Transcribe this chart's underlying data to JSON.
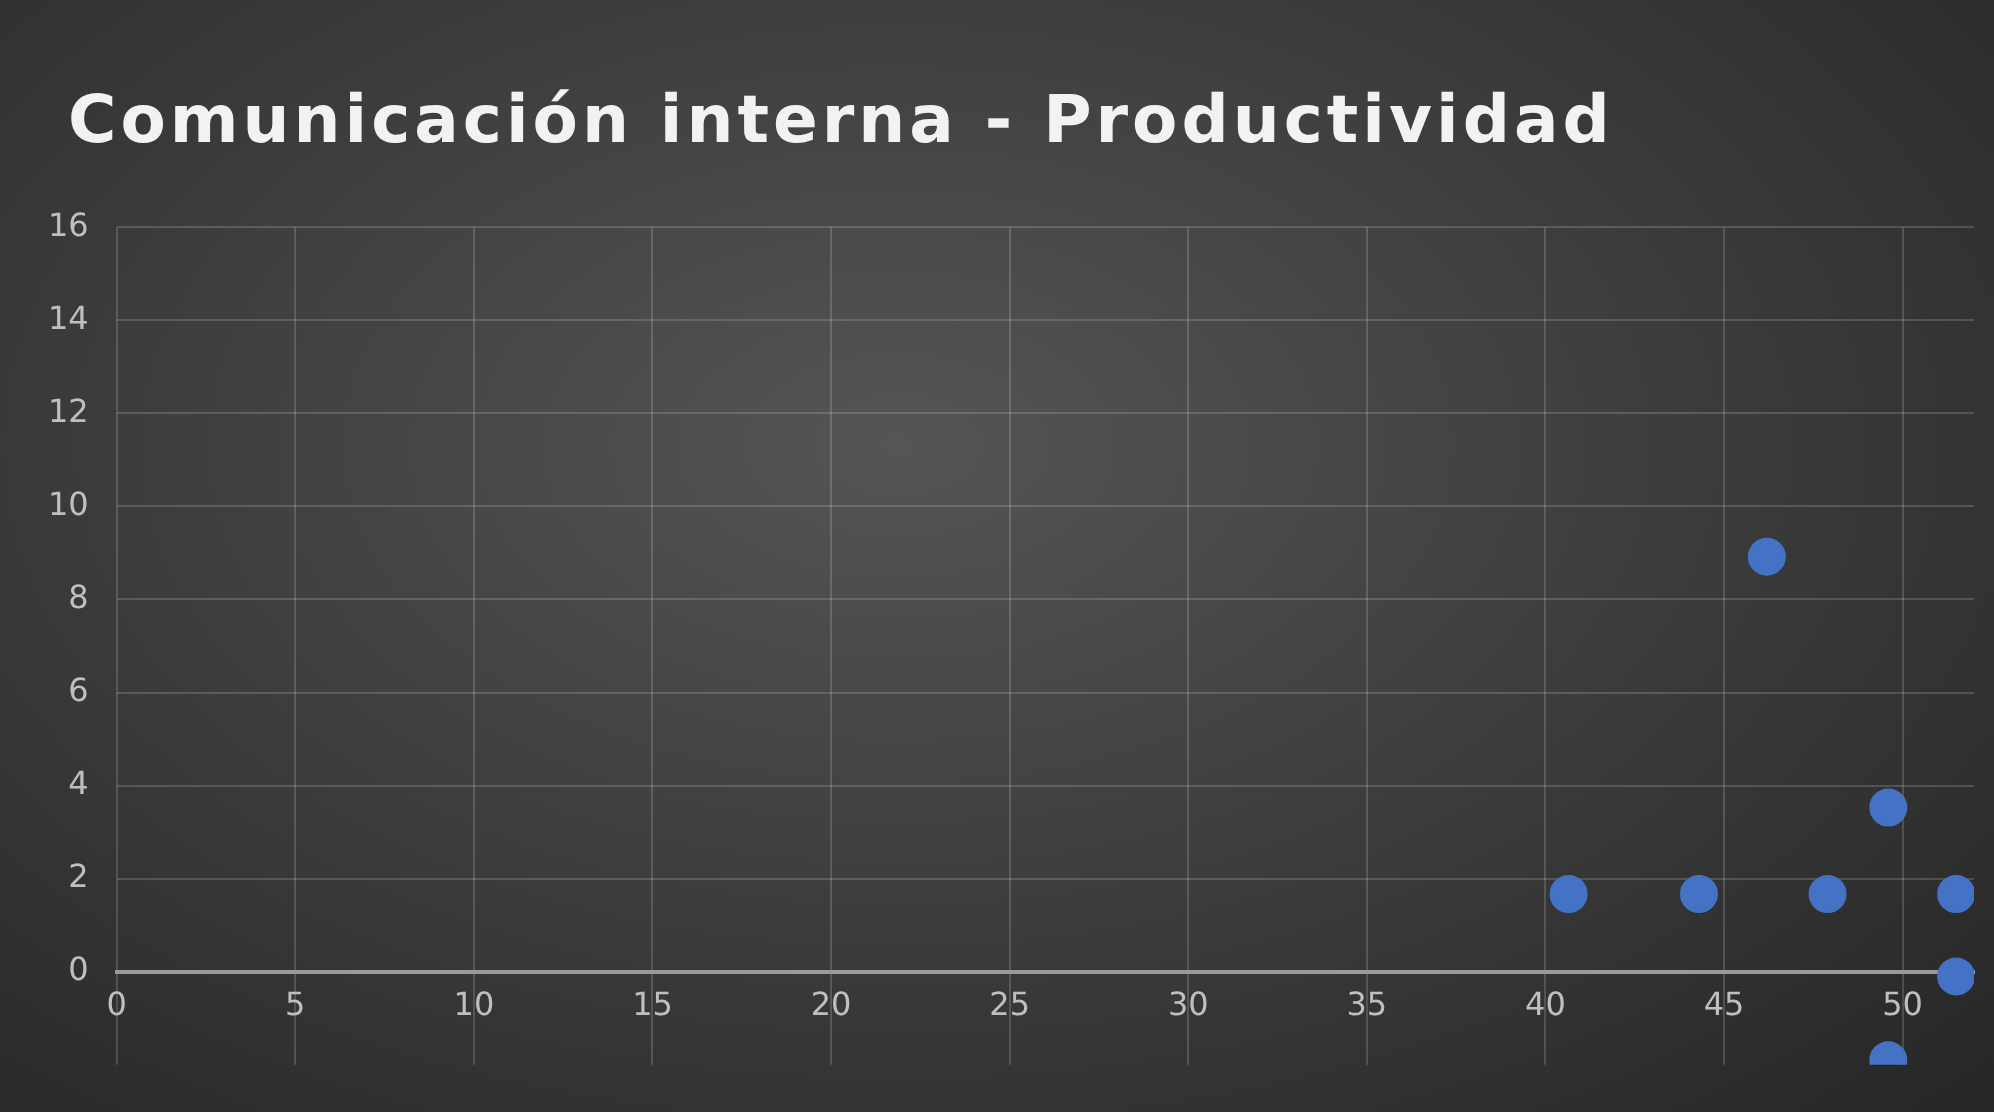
{
  "chart_data": {
    "type": "scatter",
    "title": "Comunicación interna - Productividad",
    "x": [
      40.65,
      44.3,
      47.9,
      49.6,
      46.2,
      51.5,
      51.5,
      49.6
    ],
    "values": [
      1.67,
      1.67,
      1.67,
      3.53,
      8.92,
      1.67,
      -0.1,
      -1.9
    ],
    "color": "#4472c4",
    "marker": "circle",
    "xlim": [
      0,
      52
    ],
    "xticks": [
      0,
      5,
      10,
      15,
      20,
      25,
      30,
      35,
      40,
      45,
      50
    ],
    "ylim": [
      -2,
      16
    ],
    "yticks": [
      0,
      2,
      4,
      6,
      8,
      10,
      12,
      14,
      16
    ],
    "grid": true,
    "legend": false
  }
}
